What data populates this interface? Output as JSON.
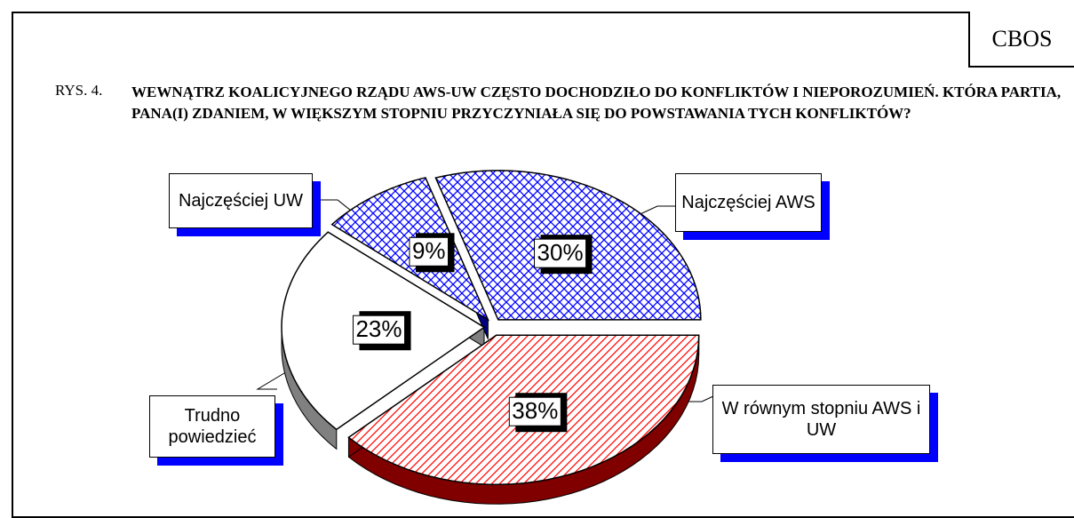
{
  "chart_data": {
    "type": "pie",
    "source": "CBOS",
    "figure_label": "RYS. 4.",
    "title": "WEWNĄTRZ KOALICYJNEGO RZĄDU AWS-UW CZĘSTO DOCHODZIŁO DO KONFLIKTÓW I NIEPOROZUMIEŃ. KTÓRA PARTIA, PANA(I) ZDANIEM, W WIĘKSZYM STOPNIU PRZYCZYNIAŁA SIĘ DO POWSTAWANIA TYCH KONFLIKTÓW?",
    "categories": [
      "Najczęściej AWS",
      "W równym stopniu AWS i UW",
      "Trudno powiedzieć",
      "Najczęściej UW"
    ],
    "values": [
      30,
      38,
      23,
      9
    ],
    "value_labels": [
      "30%",
      "38%",
      "23%",
      "9%"
    ],
    "colors": [
      "#0000ff",
      "#ff0000",
      "#ffffff",
      "#0000ff"
    ],
    "side_colors": [
      "#000080",
      "#800000",
      "#808080",
      "#000080"
    ]
  }
}
